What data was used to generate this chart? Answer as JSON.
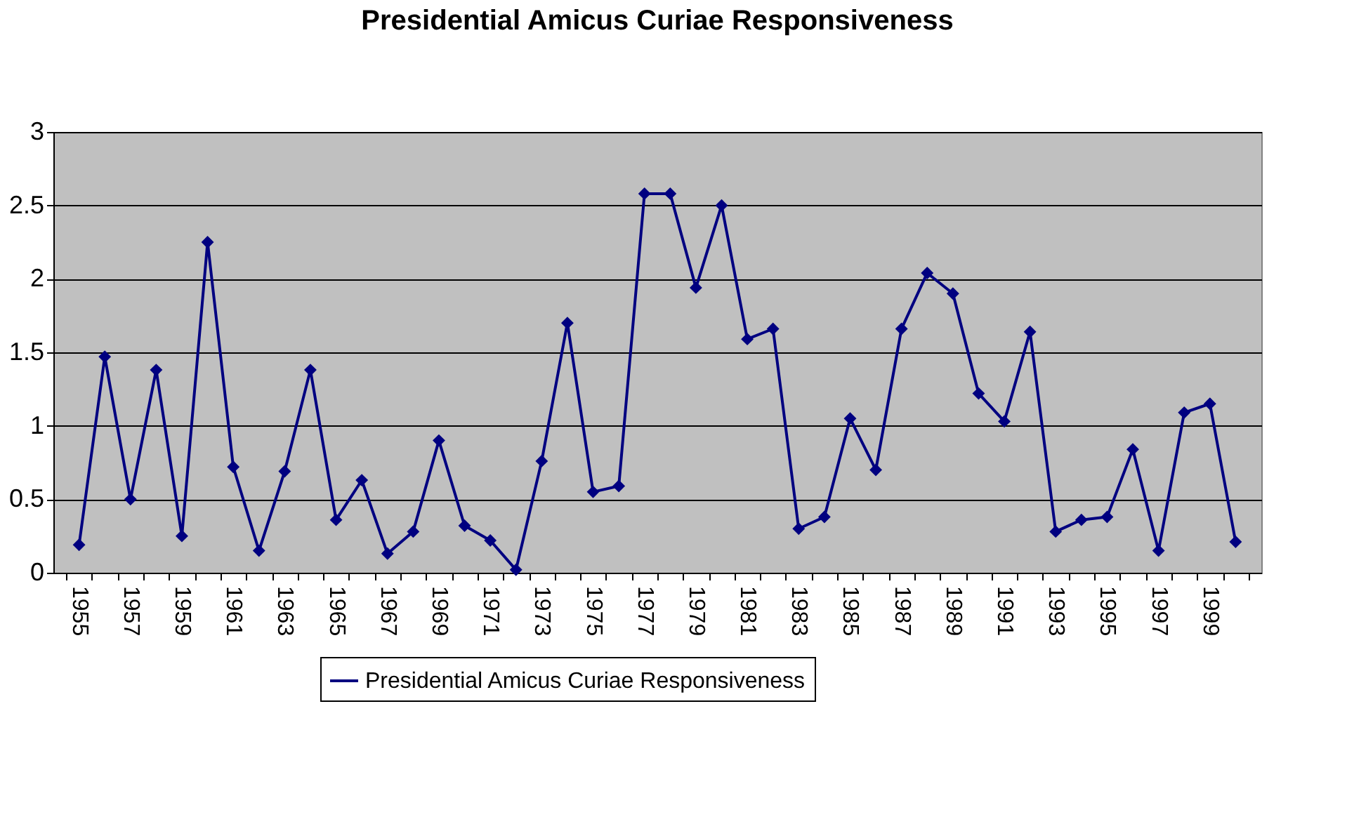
{
  "chart_data": {
    "type": "line",
    "title": "Presidential Amicus Curiae Responsiveness",
    "categories": [
      "1955",
      null,
      "1957",
      null,
      "1959",
      null,
      "1961",
      null,
      "1963",
      null,
      "1965",
      null,
      "1967",
      null,
      "1969",
      null,
      "1971",
      null,
      "1973",
      null,
      "1975",
      null,
      "1977",
      null,
      "1979",
      null,
      "1981",
      null,
      "1983",
      null,
      "1985",
      null,
      "1987",
      null,
      "1989",
      null,
      "1991",
      null,
      "1993",
      null,
      "1995",
      null,
      "1997",
      null,
      "1999",
      null
    ],
    "series": [
      {
        "name": "Presidential Amicus Curiae Responsiveness",
        "color": "#000080",
        "values": [
          0.19,
          1.47,
          0.5,
          1.38,
          0.25,
          2.25,
          0.72,
          0.15,
          0.69,
          1.38,
          0.36,
          0.63,
          0.13,
          0.28,
          0.9,
          0.32,
          0.22,
          0.02,
          0.76,
          1.7,
          0.55,
          0.59,
          2.58,
          2.58,
          1.94,
          2.5,
          1.59,
          1.66,
          0.3,
          0.38,
          1.05,
          0.7,
          1.66,
          2.04,
          1.9,
          1.22,
          1.03,
          1.64,
          0.28,
          0.36,
          0.38,
          0.84,
          0.15,
          1.09,
          1.15,
          0.21
        ]
      }
    ],
    "ylim": [
      0,
      3
    ],
    "yticks": [
      0,
      0.5,
      1,
      1.5,
      2,
      2.5,
      3
    ],
    "grid": "y",
    "legend": "bottom",
    "marker": "diamond",
    "line_style": "solid"
  }
}
